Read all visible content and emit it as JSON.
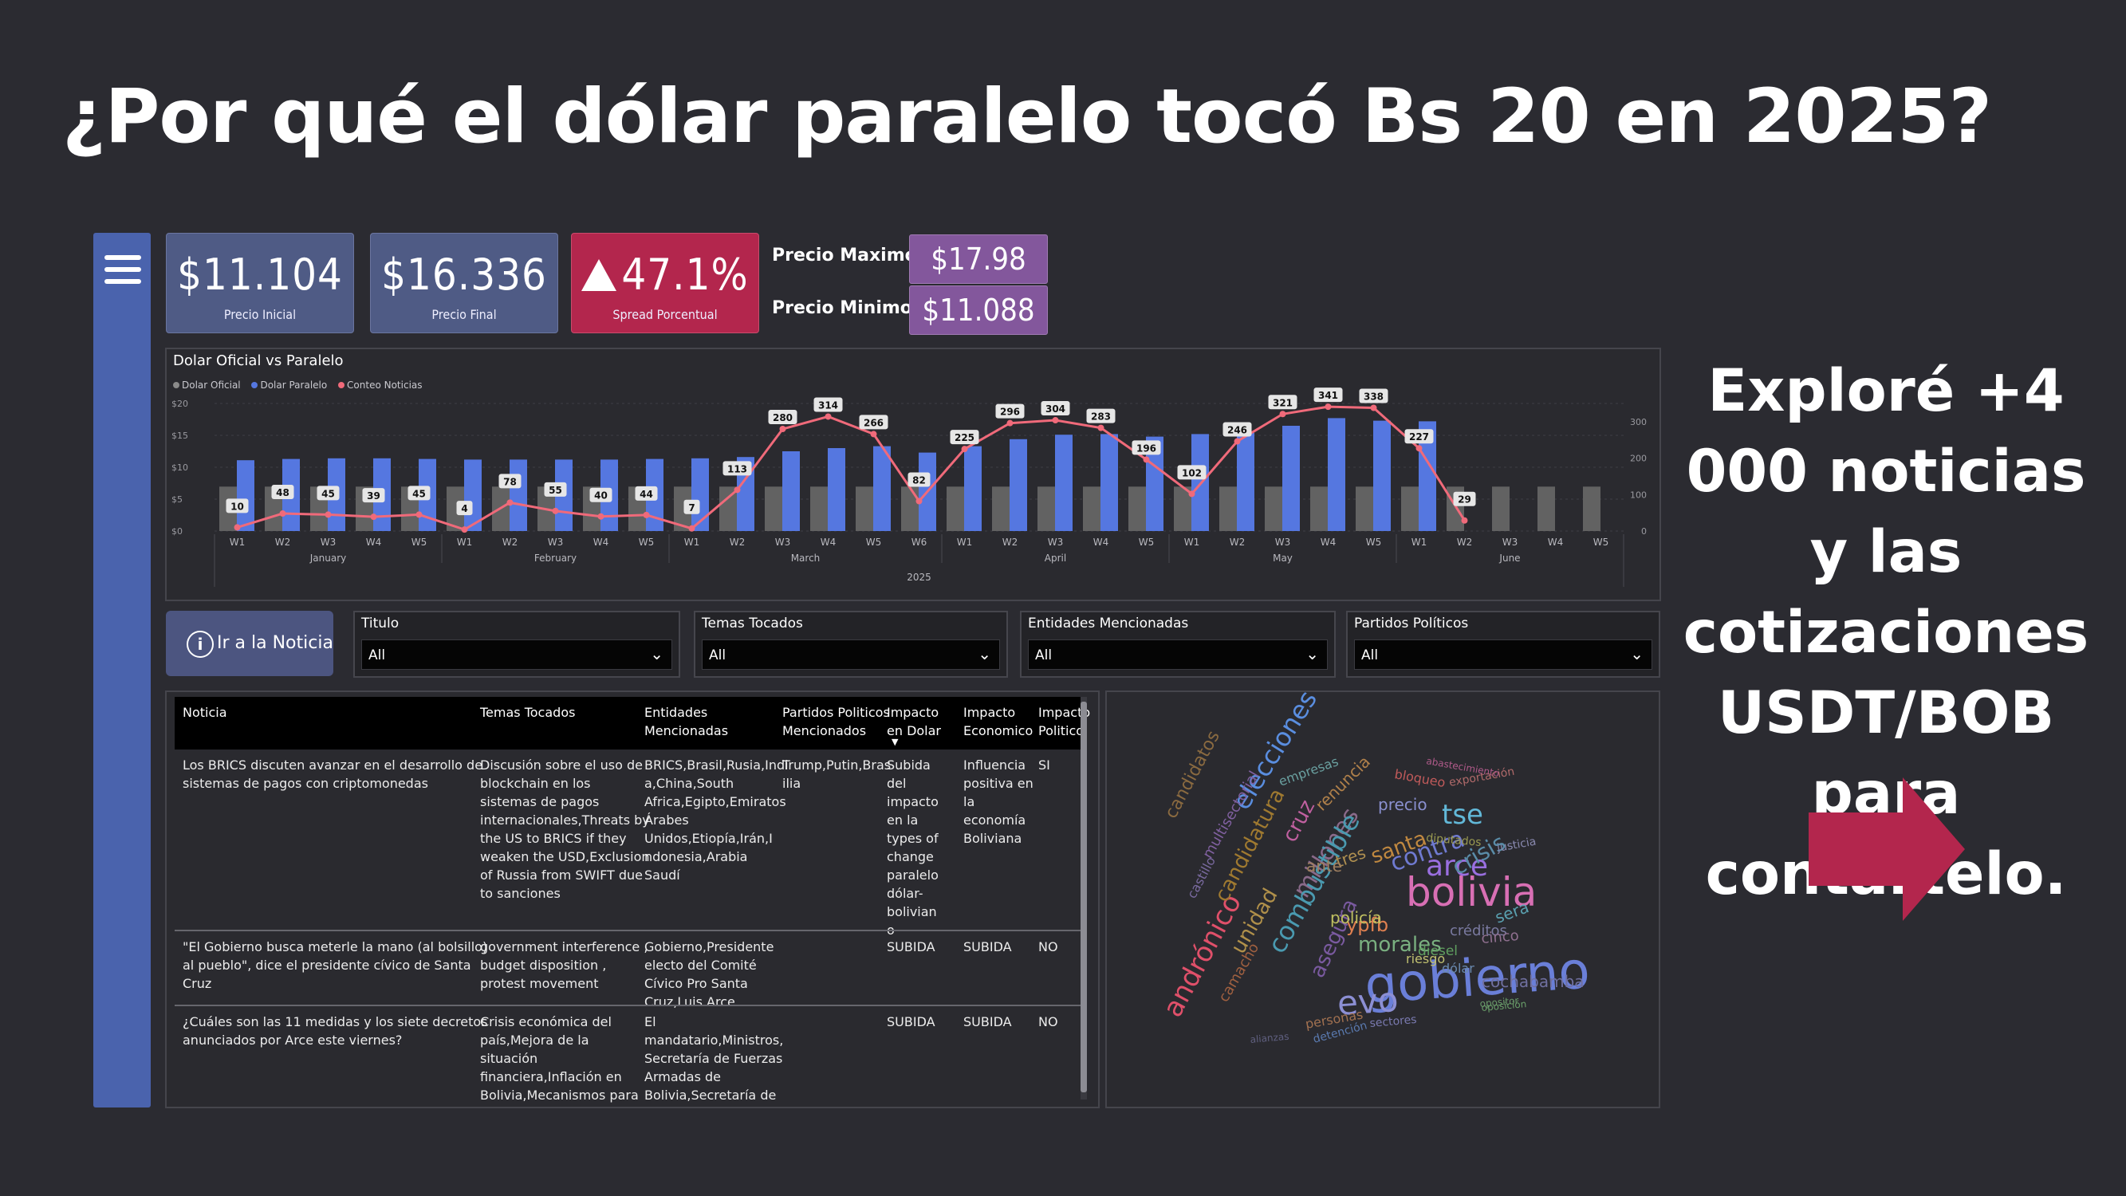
{
  "headline": "¿Por qué el dólar paralelo tocó Bs 20 en 2025?",
  "side_note": "Exploré +4 000 noticias y las cotizaciones USDT/BOB para contártelo.",
  "colors": {
    "background": "#2b2b31",
    "nav": "#4a63ad",
    "kpi_blue": "#4f5b85",
    "kpi_red": "#b3264d",
    "stat_purple": "#83579c",
    "bar_oficial": "#626262",
    "bar_paralelo": "#5577e0",
    "line_noticias": "#f06a7a",
    "arrow": "#b3264d"
  },
  "nav": {
    "icon": "hamburger-menu-icon"
  },
  "kpis": [
    {
      "value": "$11.104",
      "label": "Precio Inicial"
    },
    {
      "value": "$16.336",
      "label": "Precio Final"
    },
    {
      "value": "47.1%",
      "label": "Spread Porcentual",
      "icon": "up-triangle-icon"
    }
  ],
  "stats": {
    "max_label": "Precio Maximo",
    "max_value": "$17.98",
    "min_label": "Precio Minimo",
    "min_value": "$11.088"
  },
  "chart_data": {
    "type": "bar",
    "title": "Dolar Oficial vs Paralelo",
    "legend": [
      "Dolar Oficial",
      "Dolar Paralelo",
      "Conteo Noticias"
    ],
    "legend_position": "top-left",
    "weeks": [
      "W1",
      "W2",
      "W3",
      "W4",
      "W5",
      "W1",
      "W2",
      "W3",
      "W4",
      "W5",
      "W1",
      "W2",
      "W3",
      "W4",
      "W5",
      "W6",
      "W1",
      "W2",
      "W3",
      "W4",
      "W5",
      "W1",
      "W2",
      "W3",
      "W4",
      "W5",
      "W1",
      "W2",
      "W3",
      "W4",
      "W5"
    ],
    "months": [
      {
        "name": "January",
        "start": 0,
        "end": 4
      },
      {
        "name": "February",
        "start": 5,
        "end": 9
      },
      {
        "name": "March",
        "start": 10,
        "end": 15
      },
      {
        "name": "April",
        "start": 16,
        "end": 20
      },
      {
        "name": "May",
        "start": 21,
        "end": 25
      },
      {
        "name": "June",
        "start": 26,
        "end": 30
      }
    ],
    "year": "2025",
    "y_left_ticks": [
      "$0",
      "$5",
      "$10",
      "$15",
      "$20"
    ],
    "y_left_range": [
      0,
      20
    ],
    "y_right_ticks": [
      "0",
      "100",
      "200",
      "300"
    ],
    "y_right_range": [
      0,
      350
    ],
    "series": [
      {
        "name": "Dolar Oficial",
        "axis": "left",
        "values": [
          6.96,
          6.96,
          6.96,
          6.96,
          6.96,
          6.96,
          6.96,
          6.96,
          6.96,
          6.96,
          6.96,
          6.96,
          6.96,
          6.96,
          6.96,
          6.96,
          6.96,
          6.96,
          6.96,
          6.96,
          6.96,
          6.96,
          6.96,
          6.96,
          6.96,
          6.96,
          6.96,
          6.96,
          6.96,
          6.96,
          6.96
        ]
      },
      {
        "name": "Dolar Paralelo",
        "axis": "left",
        "values": [
          11.1,
          11.3,
          11.4,
          11.4,
          11.3,
          11.2,
          11.2,
          11.2,
          11.2,
          11.3,
          11.4,
          11.6,
          12.5,
          13.0,
          13.3,
          12.3,
          13.3,
          14.4,
          15.1,
          15.2,
          14.8,
          15.2,
          15.4,
          16.5,
          17.7,
          17.3,
          17.2,
          null,
          null,
          null,
          null
        ]
      },
      {
        "name": "Conteo Noticias",
        "axis": "right",
        "values": [
          10,
          48,
          45,
          39,
          45,
          4,
          78,
          55,
          40,
          44,
          7,
          113,
          280,
          314,
          266,
          82,
          225,
          296,
          304,
          283,
          196,
          102,
          246,
          321,
          341,
          338,
          227,
          29,
          null,
          null,
          null
        ]
      }
    ]
  },
  "info_button": {
    "label": "Ir a la Noticia",
    "icon": "info-icon"
  },
  "slicers": [
    {
      "title": "Titulo",
      "value": "All"
    },
    {
      "title": "Temas Tocados",
      "value": "All"
    },
    {
      "title": "Entidades Mencionadas",
      "value": "All"
    },
    {
      "title": "Partidos Políticos",
      "value": "All"
    }
  ],
  "table": {
    "headers": [
      [
        "Noticia"
      ],
      [
        "Temas Tocados"
      ],
      [
        "Entidades",
        "Mencionadas"
      ],
      [
        "Partidos Politicos",
        "Mencionados"
      ],
      [
        "Impacto",
        "en Dolar"
      ],
      [
        "Impacto",
        "Economico"
      ],
      [
        "Impacto",
        "Politico"
      ]
    ],
    "sort_icon": "sort-descending-icon",
    "rows": [
      [
        [
          "Los BRICS discuten avanzar en el desarrollo de",
          "sistemas de pagos con criptomonedas"
        ],
        [
          "Discusión sobre el uso de",
          "blockchain en los",
          "sistemas de pagos",
          "internacionales,Threats by",
          "the US to BRICS if they",
          "weaken the USD,Exclusion",
          "of Russia from SWIFT due",
          "to sanciones"
        ],
        [
          "BRICS,Brasil,Rusia,Indi",
          "a,China,South",
          "Africa,Egipto,Emiratos",
          "Árabes",
          "Unidos,Etiopía,Irán,I",
          "ndonesia,Arabia",
          "Saudí"
        ],
        [
          "Trump,Putin,Bras",
          "ilia"
        ],
        [
          "Subida",
          "del",
          "impacto",
          "en la",
          "types of",
          "change",
          "paralelo",
          "dólar-",
          "bolivian",
          "o"
        ],
        [
          "Influencia",
          "positiva en",
          "la",
          "economía",
          "Boliviana"
        ],
        [
          "SI"
        ]
      ],
      [
        [
          "\"El Gobierno busca meterle la mano (al bolsillo)",
          "al pueblo\", dice el presidente cívico de Santa",
          "Cruz"
        ],
        [
          "government interference ,",
          "budget disposition ,",
          "protest movement"
        ],
        [
          "Gobierno,Presidente",
          "electo del Comité",
          "Cívico Pro Santa",
          "Cruz,Luis Arce"
        ],
        [],
        [
          "SUBIDA"
        ],
        [
          "SUBIDA"
        ],
        [
          "NO"
        ]
      ],
      [
        [
          "¿Cuáles son las 11 medidas y los siete decretos",
          "anunciados por Arce este viernes?"
        ],
        [
          "Crisis económica del",
          "país,Mejora de la",
          "situación",
          "financiera,Inflación en",
          "Bolivia,Mecanismos para"
        ],
        [
          "El",
          "mandatario,Ministros,",
          "Secretaría de Fuerzas",
          "Armadas de",
          "Bolivia,Secretaría de"
        ],
        [],
        [
          "SUBIDA"
        ],
        [
          "SUBIDA"
        ],
        [
          "NO"
        ]
      ]
    ]
  },
  "word_cloud": {
    "words": [
      {
        "text": "gobierno",
        "color": "#6a7fd8"
      },
      {
        "text": "bolivia",
        "color": "#d86fb4"
      },
      {
        "text": "arce",
        "color": "#9a6fe0"
      },
      {
        "text": "tse",
        "color": "#62b8d8"
      },
      {
        "text": "evo",
        "color": "#8c8fd4"
      },
      {
        "text": "andrónico",
        "color": "#e0506a"
      },
      {
        "text": "elecciones",
        "color": "#5a8ee0"
      },
      {
        "text": "millones",
        "color": "#8a6a8a"
      },
      {
        "text": "combustible",
        "color": "#4a9ab0"
      },
      {
        "text": "crisis",
        "color": "#5a8ca8"
      },
      {
        "text": "contra",
        "color": "#6f7ad0"
      },
      {
        "text": "morales",
        "color": "#7ab080"
      },
      {
        "text": "santa",
        "color": "#c08840"
      },
      {
        "text": "candidatura",
        "color": "#a07a30"
      },
      {
        "text": "asegura",
        "color": "#7a5aa0"
      },
      {
        "text": "precio",
        "color": "#8a90d0"
      },
      {
        "text": "ypfb",
        "color": "#e08050"
      },
      {
        "text": "cruz",
        "color": "#c060a0"
      },
      {
        "text": "diesel",
        "color": "#60a060"
      },
      {
        "text": "cochabamba",
        "color": "#7070a0"
      },
      {
        "text": "unidad",
        "color": "#b0904a"
      },
      {
        "text": "candidatos",
        "color": "#8a6a40"
      },
      {
        "text": "dólar",
        "color": "#6a8ab0"
      },
      {
        "text": "exportación",
        "color": "#b06a6a"
      },
      {
        "text": "empresas",
        "color": "#6aa0a0"
      },
      {
        "text": "justicia",
        "color": "#8a8ab0"
      },
      {
        "text": "renuncia",
        "color": "#b0804a"
      },
      {
        "text": "policía",
        "color": "#c0c060"
      },
      {
        "text": "tres",
        "color": "#b09050"
      },
      {
        "text": "ante",
        "color": "#a08060"
      },
      {
        "text": "créditos",
        "color": "#7a7aa0"
      },
      {
        "text": "riesgo",
        "color": "#c0c070"
      },
      {
        "text": "cinco",
        "color": "#907090"
      },
      {
        "text": "sera",
        "color": "#5aa0b0"
      },
      {
        "text": "personas",
        "color": "#a07050"
      },
      {
        "text": "opositor",
        "color": "#6a9a6a"
      },
      {
        "text": "multisectorial",
        "color": "#8060a0"
      },
      {
        "text": "alianzas",
        "color": "#606080"
      },
      {
        "text": "detención",
        "color": "#5a7ab0"
      },
      {
        "text": "sectores",
        "color": "#7a7ab0"
      },
      {
        "text": "abastecimiento",
        "color": "#b05a8a"
      },
      {
        "text": "bloqueo",
        "color": "#c05a5a"
      },
      {
        "text": "diputados",
        "color": "#9a9a50"
      },
      {
        "text": "oposición",
        "color": "#6aa06a"
      },
      {
        "text": "camacho",
        "color": "#a06040"
      },
      {
        "text": "castillo",
        "color": "#7a6aa0"
      }
    ]
  }
}
